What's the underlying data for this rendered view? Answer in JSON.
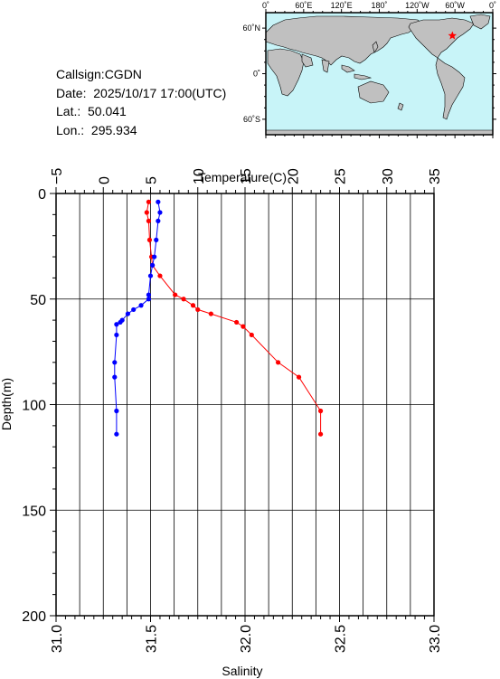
{
  "info": {
    "callsign": "Callsign:CGDN",
    "date": "Date:  2025/10/17 17:00(UTC)",
    "lat": "Lat.:  50.041",
    "lon": "Lon.:  295.934"
  },
  "map": {
    "lon_labels": [
      "0˚",
      "60˚E",
      "120˚E",
      "180˚",
      "120˚W",
      "60˚W",
      "0˚"
    ],
    "lat_labels": [
      "60˚N",
      "0˚",
      "60˚S"
    ],
    "ocean_color": "#c8f4f8",
    "land_color": "#c0c0c0",
    "marker_color": "#ff0000",
    "station_lat": 50.041,
    "station_lon": 295.934
  },
  "chart_data": {
    "type": "line",
    "ylabel": "Depth(m)",
    "ylim": [
      200,
      0
    ],
    "y_ticks": [
      "0",
      "50",
      "100",
      "150",
      "200"
    ],
    "top_axis": {
      "label": "Temperature(C)",
      "range": [
        -5,
        35
      ],
      "ticks": [
        "−5",
        "0",
        "5",
        "10",
        "15",
        "20",
        "25",
        "30",
        "35"
      ]
    },
    "bottom_axis": {
      "label": "Salinity",
      "range": [
        31.0,
        33.0
      ],
      "ticks": [
        "31.0",
        "31.5",
        "32.0",
        "32.5",
        "33.0"
      ]
    },
    "grid": true,
    "series": [
      {
        "axis": "top",
        "color": "#ff0000",
        "points": [
          [
            4.8,
            4
          ],
          [
            4.6,
            9
          ],
          [
            4.8,
            13
          ],
          [
            4.9,
            22
          ],
          [
            5.1,
            30
          ],
          [
            5.2,
            34
          ],
          [
            6.0,
            39
          ],
          [
            7.6,
            48
          ],
          [
            8.5,
            50
          ],
          [
            9.5,
            53
          ],
          [
            10.0,
            55
          ],
          [
            11.4,
            57
          ],
          [
            14.1,
            61
          ],
          [
            14.8,
            63
          ],
          [
            15.7,
            67
          ],
          [
            18.5,
            80
          ],
          [
            20.7,
            87
          ],
          [
            23.0,
            103
          ],
          [
            23.0,
            114
          ]
        ]
      },
      {
        "axis": "bottom",
        "color": "#0000ff",
        "points": [
          [
            31.54,
            4
          ],
          [
            31.55,
            9
          ],
          [
            31.54,
            13
          ],
          [
            31.53,
            22
          ],
          [
            31.52,
            30
          ],
          [
            31.51,
            34
          ],
          [
            31.5,
            39
          ],
          [
            31.49,
            48
          ],
          [
            31.49,
            50
          ],
          [
            31.45,
            53
          ],
          [
            31.41,
            55
          ],
          [
            31.38,
            57
          ],
          [
            31.35,
            60
          ],
          [
            31.34,
            61
          ],
          [
            31.32,
            62
          ],
          [
            31.32,
            67
          ],
          [
            31.31,
            80
          ],
          [
            31.31,
            87
          ],
          [
            31.32,
            103
          ],
          [
            31.32,
            114
          ]
        ]
      }
    ]
  }
}
